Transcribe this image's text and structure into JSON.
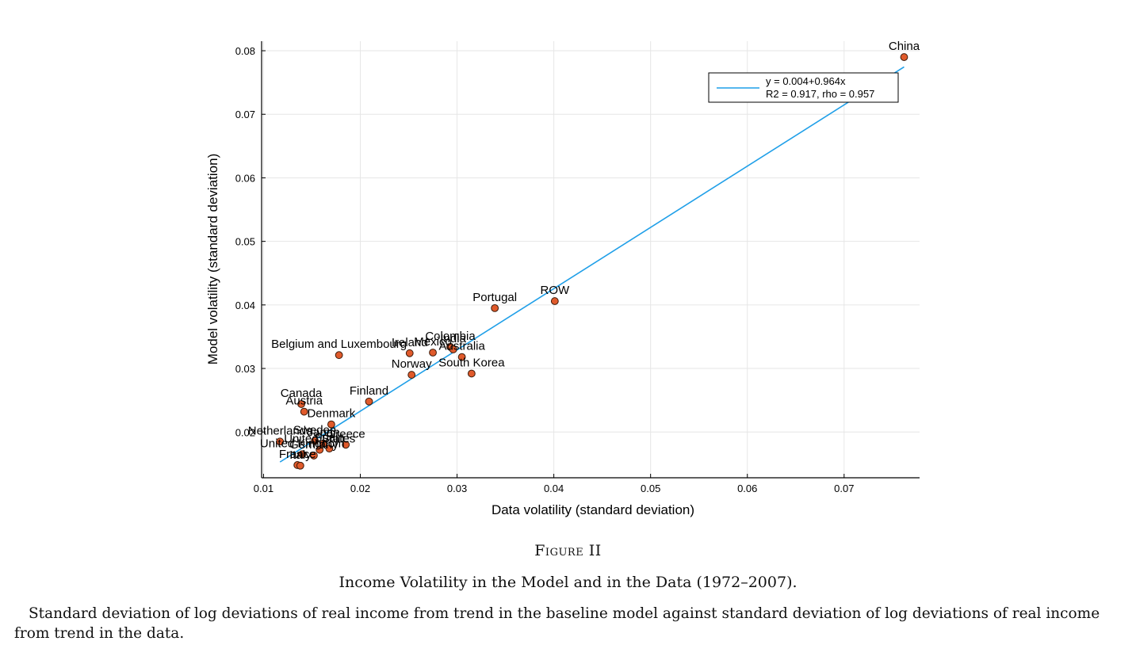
{
  "chart_data": {
    "type": "scatter",
    "xlabel": "Data volatility (standard deviation)",
    "ylabel": "Model volatility (standard deviation)",
    "xlim": [
      0.0098,
      0.0778
    ],
    "ylim": [
      0.0128,
      0.0815
    ],
    "x_ticks": [
      "0.01",
      "0.02",
      "0.03",
      "0.04",
      "0.05",
      "0.06",
      "0.07"
    ],
    "y_ticks": [
      "0.02",
      "0.03",
      "0.04",
      "0.05",
      "0.06",
      "0.07",
      "0.08"
    ],
    "grid": true,
    "legend_position": "top-right",
    "point_color": "#e05a2b",
    "line_color": "#1f9fe8",
    "fit": {
      "intercept": 0.004,
      "slope": 0.964,
      "x_range": [
        0.0117,
        0.0762
      ],
      "legend_line1": "y = 0.004+0.964x",
      "legend_line2": "R2 = 0.917, rho = 0.957"
    },
    "points": [
      {
        "label": "China",
        "x": 0.0762,
        "y": 0.079
      },
      {
        "label": "ROW",
        "x": 0.0401,
        "y": 0.0406
      },
      {
        "label": "Portugal",
        "x": 0.0339,
        "y": 0.0395
      },
      {
        "label": "Belgium and Luxembourg",
        "x": 0.0178,
        "y": 0.0321
      },
      {
        "label": "Ireland",
        "x": 0.0251,
        "y": 0.0324
      },
      {
        "label": "Mexico",
        "x": 0.0275,
        "y": 0.0325
      },
      {
        "label": "Colombia",
        "x": 0.0293,
        "y": 0.0334
      },
      {
        "label": "India",
        "x": 0.0296,
        "y": 0.033
      },
      {
        "label": "Australia",
        "x": 0.0305,
        "y": 0.0318
      },
      {
        "label": "Norway",
        "x": 0.0253,
        "y": 0.029
      },
      {
        "label": "South Korea",
        "x": 0.0315,
        "y": 0.0292
      },
      {
        "label": "Finland",
        "x": 0.0209,
        "y": 0.0248
      },
      {
        "label": "Canada",
        "x": 0.0139,
        "y": 0.0244
      },
      {
        "label": "Austria",
        "x": 0.0142,
        "y": 0.0232
      },
      {
        "label": "Denmark",
        "x": 0.017,
        "y": 0.0212
      },
      {
        "label": "Netherlands",
        "x": 0.0117,
        "y": 0.0185
      },
      {
        "label": "Sweden",
        "x": 0.0153,
        "y": 0.0186
      },
      {
        "label": "Japan",
        "x": 0.0162,
        "y": 0.0182
      },
      {
        "label": "Greece",
        "x": 0.0185,
        "y": 0.018
      },
      {
        "label": "United States",
        "x": 0.0158,
        "y": 0.0172
      },
      {
        "label": "United Kingdom",
        "x": 0.014,
        "y": 0.0165
      },
      {
        "label": "Germany",
        "x": 0.0152,
        "y": 0.0163
      },
      {
        "label": "France",
        "x": 0.0135,
        "y": 0.0148
      },
      {
        "label": "Italy",
        "x": 0.0138,
        "y": 0.0147
      },
      {
        "label": "Spain",
        "x": 0.0168,
        "y": 0.0174
      }
    ]
  },
  "caption": {
    "figure_number": "Figure II",
    "title": "Income Volatility in the Model and in the Data (1972–2007).",
    "notes": "Standard deviation of log deviations of real income from trend in the baseline model against standard deviation of log deviations of real income from trend in the data."
  }
}
